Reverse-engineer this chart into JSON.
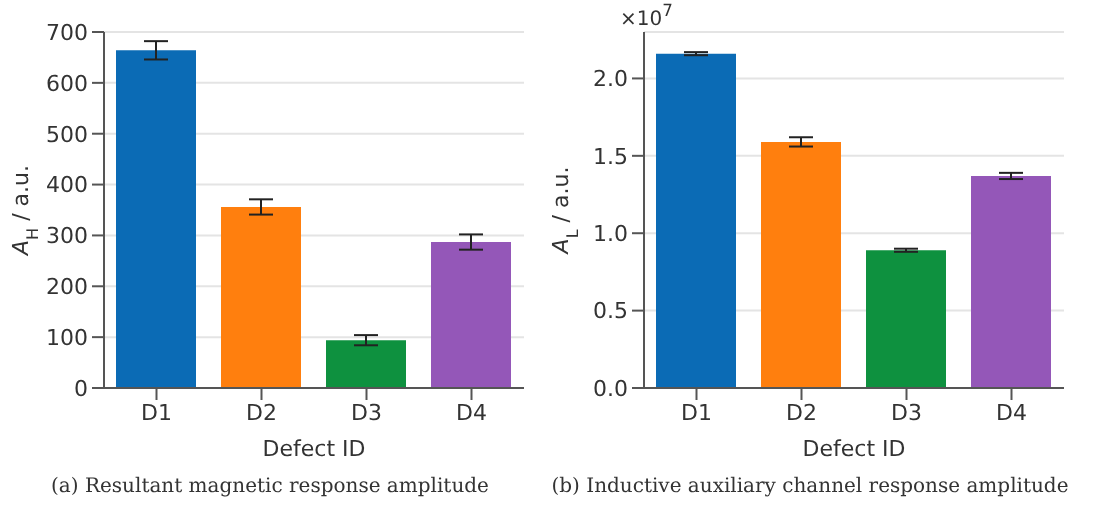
{
  "chart_data": [
    {
      "type": "bar",
      "title": "(a) Resultant magnetic response amplitude",
      "xlabel": "Defect ID",
      "ylabel": "A$_{H}$ / a.u.",
      "categories": [
        "D1",
        "D2",
        "D3",
        "D4"
      ],
      "values": [
        664,
        356,
        94,
        287
      ],
      "errors": [
        18,
        15,
        10,
        15
      ],
      "colors": [
        "#0b6bb5",
        "#ff7f0e",
        "#0e913f",
        "#9457b8"
      ],
      "ylim": [
        0,
        700
      ],
      "yticks": [
        0,
        100,
        200,
        300,
        400,
        500,
        600,
        700
      ],
      "grid": "y",
      "legend": false
    },
    {
      "type": "bar",
      "title": "(b) Inductive auxiliary channel response amplitude",
      "xlabel": "Defect ID",
      "ylabel": "A$_{L}$ / a.u.",
      "annotations": [
        "×10$^{7}$"
      ],
      "categories": [
        "D1",
        "D2",
        "D3",
        "D4"
      ],
      "values": [
        2.16,
        1.59,
        0.89,
        1.37
      ],
      "errors": [
        0.01,
        0.03,
        0.01,
        0.02
      ],
      "colors": [
        "#0b6bb5",
        "#ff7f0e",
        "#0e913f",
        "#9457b8"
      ],
      "ylim": [
        0,
        2.3
      ],
      "yticks": [
        {
          "value": 0,
          "label": "0.0"
        },
        0.5,
        {
          "value": 1,
          "label": "1.0"
        },
        1.5,
        {
          "value": 2,
          "label": "2.0"
        }
      ],
      "grid": "y",
      "legend": false
    }
  ]
}
